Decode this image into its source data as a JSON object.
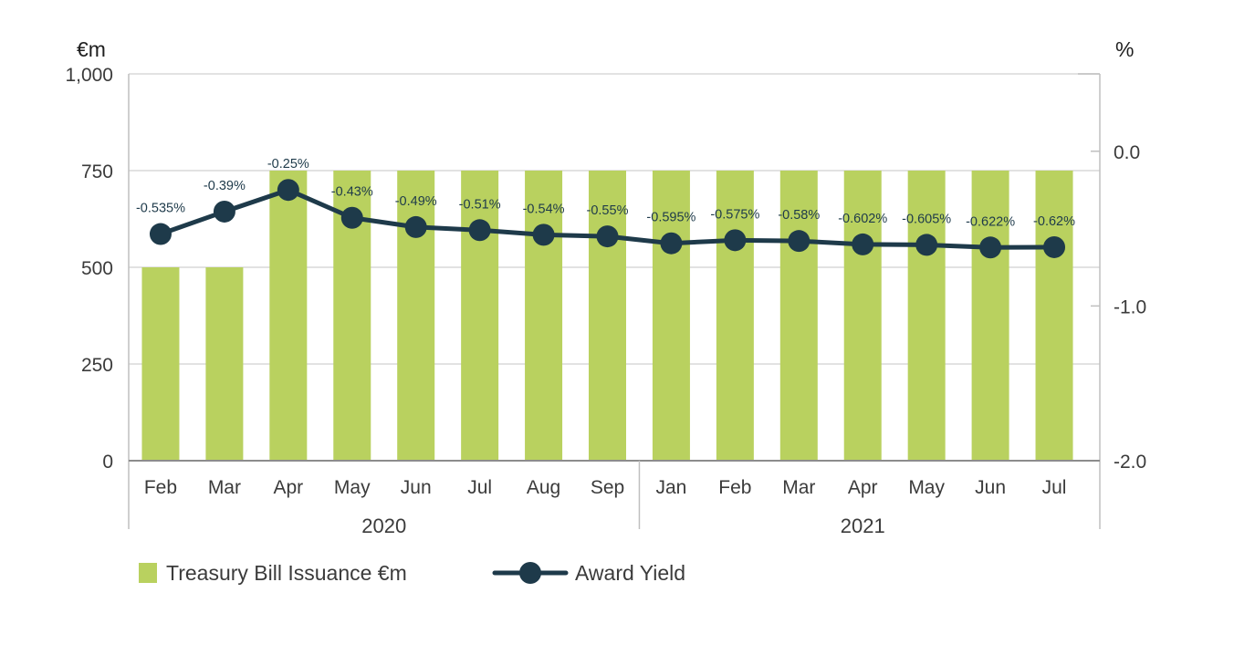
{
  "chart_data": {
    "type": "bar+line",
    "left_unit": "€m",
    "right_unit": "%",
    "categories": [
      "Feb",
      "Mar",
      "Apr",
      "May",
      "Jun",
      "Jul",
      "Aug",
      "Sep",
      "Jan",
      "Feb",
      "Mar",
      "Apr",
      "May",
      "Jun",
      "Jul"
    ],
    "groups": [
      {
        "label": "2020",
        "count": 8
      },
      {
        "label": "2021",
        "count": 7
      }
    ],
    "left_axis": {
      "min": 0,
      "max": 1000,
      "ticks": [
        0,
        250,
        500,
        750,
        1000
      ],
      "tick_labels": [
        "0",
        "250",
        "500",
        "750",
        "1,000"
      ]
    },
    "right_axis": {
      "min": -2.0,
      "max": 0.5,
      "ticks": [
        -2.0,
        -1.0,
        0.0
      ],
      "tick_labels": [
        "-2.0",
        "-1.0",
        "0.0"
      ]
    },
    "series": [
      {
        "name": "Treasury Bill Issuance €m",
        "type": "bar",
        "axis": "left",
        "color": "#b9d15f",
        "values": [
          500,
          500,
          750,
          750,
          750,
          750,
          750,
          750,
          750,
          750,
          750,
          750,
          750,
          750,
          750
        ]
      },
      {
        "name": "Award Yield",
        "type": "line",
        "axis": "right",
        "color": "#1e3a4a",
        "values": [
          -0.535,
          -0.39,
          -0.25,
          -0.43,
          -0.49,
          -0.51,
          -0.54,
          -0.55,
          -0.595,
          -0.575,
          -0.58,
          -0.602,
          -0.605,
          -0.622,
          -0.62
        ],
        "labels": [
          "-0.535%",
          "-0.39%",
          "-0.25%",
          "-0.43%",
          "-0.49%",
          "-0.51%",
          "-0.54%",
          "-0.55%",
          "-0.595%",
          "-0.575%",
          "-0.58%",
          "-0.602%",
          "-0.605%",
          "-0.622%",
          "-0.62%"
        ]
      }
    ],
    "grid": true,
    "legend_position": "bottom-left"
  }
}
